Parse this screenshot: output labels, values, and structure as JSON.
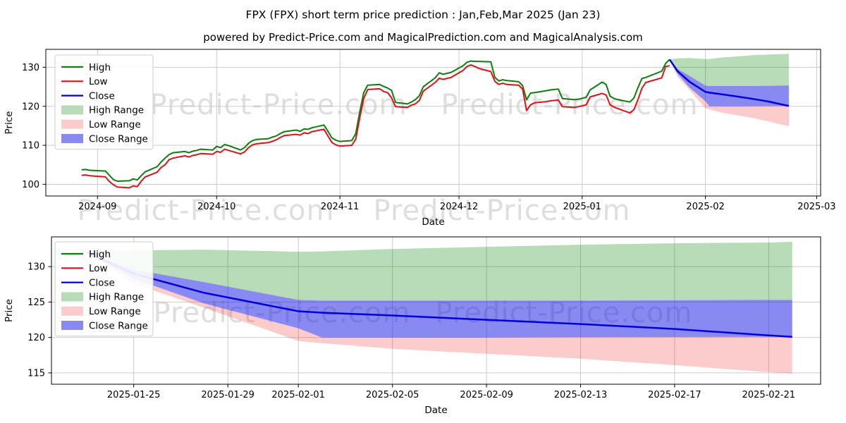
{
  "title": "FPX (FPX) short term price prediction : Jan,Feb,Mar 2025 (Jan 23)",
  "subtitle": "powered by Predict-Price.com and MagicalPrediction.com and MagicalAnalysis.com",
  "watermark": "Predict-Price.com",
  "colors": {
    "high_line": "#0a800a",
    "low_line": "#e01018",
    "close_line": "#0000dd",
    "high_fill": "rgba(0,128,0,0.28)",
    "low_fill": "rgba(240,30,30,0.23)",
    "close_fill": "rgba(20,20,230,0.5)",
    "grid": "#c6c6c6",
    "spine": "#000000"
  },
  "legend": [
    {
      "label": "High",
      "type": "line",
      "color": "#0a800a"
    },
    {
      "label": "Low",
      "type": "line",
      "color": "#e01018"
    },
    {
      "label": "Close",
      "type": "line",
      "color": "#0000dd"
    },
    {
      "label": "High Range",
      "type": "patch",
      "color": "rgba(0,128,0,0.28)"
    },
    {
      "label": "Low Range",
      "type": "patch",
      "color": "rgba(240,30,30,0.23)"
    },
    {
      "label": "Close Range",
      "type": "patch",
      "color": "rgba(20,20,230,0.5)"
    }
  ],
  "chart_data": [
    {
      "name": "top-chart",
      "type": "line",
      "xlabel": "Date",
      "ylabel": "Price",
      "xlim": [
        "2024-08-19",
        "2025-03-02"
      ],
      "ylim": [
        97,
        134.6
      ],
      "y_ticks": [
        100,
        110,
        120,
        130
      ],
      "x_ticks": [
        {
          "date": "2024-09-01",
          "label": "2024-09"
        },
        {
          "date": "2024-10-01",
          "label": "2024-10"
        },
        {
          "date": "2024-11-01",
          "label": "2024-11"
        },
        {
          "date": "2024-12-01",
          "label": "2024-12"
        },
        {
          "date": "2025-01-01",
          "label": "2025-01"
        },
        {
          "date": "2025-02-01",
          "label": "2025-02"
        },
        {
          "date": "2025-03-01",
          "label": "2025-03"
        }
      ],
      "series": [
        {
          "name": "High",
          "color": "#0a800a",
          "width": 2,
          "dates": [
            "2024-08-28",
            "2024-08-29",
            "2024-08-30",
            "2024-09-03",
            "2024-09-04",
            "2024-09-05",
            "2024-09-06",
            "2024-09-09",
            "2024-09-10",
            "2024-09-11",
            "2024-09-12",
            "2024-09-13",
            "2024-09-16",
            "2024-09-17",
            "2024-09-18",
            "2024-09-19",
            "2024-09-20",
            "2024-09-23",
            "2024-09-24",
            "2024-09-25",
            "2024-09-26",
            "2024-09-27",
            "2024-09-30",
            "2024-10-01",
            "2024-10-02",
            "2024-10-03",
            "2024-10-04",
            "2024-10-07",
            "2024-10-08",
            "2024-10-09",
            "2024-10-10",
            "2024-10-11",
            "2024-10-14",
            "2024-10-15",
            "2024-10-16",
            "2024-10-17",
            "2024-10-18",
            "2024-10-21",
            "2024-10-22",
            "2024-10-23",
            "2024-10-24",
            "2024-10-25",
            "2024-10-28",
            "2024-10-29",
            "2024-10-30",
            "2024-10-31",
            "2024-11-01",
            "2024-11-04",
            "2024-11-05",
            "2024-11-06",
            "2024-11-07",
            "2024-11-08",
            "2024-11-11",
            "2024-11-12",
            "2024-11-13",
            "2024-11-14",
            "2024-11-15",
            "2024-11-18",
            "2024-11-19",
            "2024-11-20",
            "2024-11-21",
            "2024-11-22",
            "2024-11-25",
            "2024-11-26",
            "2024-11-27",
            "2024-11-29",
            "2024-12-02",
            "2024-12-03",
            "2024-12-04",
            "2024-12-05",
            "2024-12-06",
            "2024-12-09",
            "2024-12-10",
            "2024-12-11",
            "2024-12-12",
            "2024-12-13",
            "2024-12-16",
            "2024-12-17",
            "2024-12-18",
            "2024-12-19",
            "2024-12-20",
            "2024-12-23",
            "2024-12-24",
            "2024-12-26",
            "2024-12-27",
            "2024-12-30",
            "2024-12-31",
            "2025-01-02",
            "2025-01-03",
            "2025-01-06",
            "2025-01-07",
            "2025-01-08",
            "2025-01-09",
            "2025-01-10",
            "2025-01-13",
            "2025-01-14",
            "2025-01-15",
            "2025-01-16",
            "2025-01-17",
            "2025-01-21",
            "2025-01-22",
            "2025-01-23"
          ],
          "values": [
            103.7,
            103.8,
            103.6,
            103.4,
            102.3,
            101.2,
            100.8,
            100.9,
            101.4,
            101.1,
            102.2,
            103.2,
            104.5,
            105.7,
            106.7,
            107.6,
            108.1,
            108.4,
            108.1,
            108.5,
            108.7,
            109.0,
            108.8,
            109.7,
            109.4,
            110.2,
            109.9,
            108.8,
            109.4,
            110.5,
            111.2,
            111.5,
            111.7,
            112.1,
            112.4,
            113.0,
            113.5,
            113.9,
            113.6,
            114.2,
            114.1,
            114.5,
            115.2,
            113.6,
            111.9,
            111.3,
            111.0,
            111.2,
            113.0,
            118.5,
            123.5,
            125.4,
            125.6,
            125.1,
            124.7,
            124.1,
            121.0,
            120.6,
            121.1,
            121.7,
            122.7,
            125.0,
            127.3,
            128.6,
            128.2,
            128.7,
            130.4,
            131.3,
            131.6,
            131.5,
            131.5,
            131.4,
            127.4,
            126.5,
            126.8,
            126.6,
            126.3,
            125.3,
            121.7,
            123.4,
            123.5,
            124.0,
            124.2,
            124.4,
            122.0,
            121.7,
            121.8,
            122.3,
            124.2,
            126.2,
            125.6,
            122.6,
            122.0,
            121.7,
            121.1,
            122.1,
            124.7,
            127.1,
            127.4,
            129.0,
            131.0,
            132.0
          ]
        },
        {
          "name": "Low",
          "color": "#e01018",
          "width": 2,
          "dates": [
            "2024-08-28",
            "2024-08-29",
            "2024-08-30",
            "2024-09-03",
            "2024-09-04",
            "2024-09-05",
            "2024-09-06",
            "2024-09-09",
            "2024-09-10",
            "2024-09-11",
            "2024-09-12",
            "2024-09-13",
            "2024-09-16",
            "2024-09-17",
            "2024-09-18",
            "2024-09-19",
            "2024-09-20",
            "2024-09-23",
            "2024-09-24",
            "2024-09-25",
            "2024-09-26",
            "2024-09-27",
            "2024-09-30",
            "2024-10-01",
            "2024-10-02",
            "2024-10-03",
            "2024-10-04",
            "2024-10-07",
            "2024-10-08",
            "2024-10-09",
            "2024-10-10",
            "2024-10-11",
            "2024-10-14",
            "2024-10-15",
            "2024-10-16",
            "2024-10-17",
            "2024-10-18",
            "2024-10-21",
            "2024-10-22",
            "2024-10-23",
            "2024-10-24",
            "2024-10-25",
            "2024-10-28",
            "2024-10-29",
            "2024-10-30",
            "2024-10-31",
            "2024-11-01",
            "2024-11-04",
            "2024-11-05",
            "2024-11-06",
            "2024-11-07",
            "2024-11-08",
            "2024-11-11",
            "2024-11-12",
            "2024-11-13",
            "2024-11-14",
            "2024-11-15",
            "2024-11-18",
            "2024-11-19",
            "2024-11-20",
            "2024-11-21",
            "2024-11-22",
            "2024-11-25",
            "2024-11-26",
            "2024-11-27",
            "2024-11-29",
            "2024-12-02",
            "2024-12-03",
            "2024-12-04",
            "2024-12-05",
            "2024-12-06",
            "2024-12-09",
            "2024-12-10",
            "2024-12-11",
            "2024-12-12",
            "2024-12-13",
            "2024-12-16",
            "2024-12-17",
            "2024-12-18",
            "2024-12-19",
            "2024-12-20",
            "2024-12-23",
            "2024-12-24",
            "2024-12-26",
            "2024-12-27",
            "2024-12-30",
            "2024-12-31",
            "2025-01-02",
            "2025-01-03",
            "2025-01-06",
            "2025-01-07",
            "2025-01-08",
            "2025-01-09",
            "2025-01-10",
            "2025-01-13",
            "2025-01-14",
            "2025-01-15",
            "2025-01-16",
            "2025-01-17",
            "2025-01-21",
            "2025-01-22",
            "2025-01-23"
          ],
          "values": [
            102.3,
            102.4,
            102.2,
            101.9,
            100.7,
            99.9,
            99.3,
            99.1,
            99.6,
            99.4,
            100.8,
            101.9,
            103.1,
            104.3,
            105.0,
            106.3,
            106.7,
            107.3,
            107.0,
            107.4,
            107.6,
            107.9,
            107.7,
            108.4,
            108.2,
            109.0,
            108.7,
            107.8,
            108.3,
            109.4,
            110.1,
            110.4,
            110.7,
            111.0,
            111.4,
            112.0,
            112.5,
            112.8,
            112.6,
            113.2,
            113.0,
            113.5,
            114.1,
            112.4,
            110.7,
            110.1,
            109.8,
            110.0,
            111.6,
            117.0,
            122.0,
            124.3,
            124.5,
            123.8,
            123.5,
            122.2,
            119.9,
            119.7,
            120.3,
            120.6,
            121.5,
            123.9,
            126.1,
            127.2,
            126.9,
            127.4,
            129.2,
            130.2,
            130.6,
            130.2,
            129.7,
            128.9,
            126.4,
            125.6,
            125.9,
            125.6,
            125.4,
            124.4,
            118.9,
            120.4,
            120.9,
            121.2,
            121.4,
            121.6,
            119.9,
            119.7,
            119.9,
            120.4,
            122.4,
            123.3,
            122.9,
            120.4,
            119.8,
            119.4,
            118.3,
            119.1,
            121.6,
            124.6,
            126.1,
            127.3,
            130.2,
            130.4
          ]
        },
        {
          "name": "Close",
          "color": "#0000dd",
          "width": 2.5,
          "dates": [
            "2025-01-23",
            "2025-01-25",
            "2025-01-28",
            "2025-02-01",
            "2025-02-02",
            "2025-02-05",
            "2025-02-09",
            "2025-02-13",
            "2025-02-17",
            "2025-02-21",
            "2025-02-22"
          ],
          "values": [
            132.0,
            129.0,
            126.3,
            123.7,
            123.5,
            123.1,
            122.5,
            121.9,
            121.2,
            120.3,
            120.1
          ]
        }
      ],
      "bands": [
        {
          "name": "High Range",
          "fill": "rgba(0,128,0,0.28)",
          "dates": [
            "2025-01-23",
            "2025-01-25",
            "2025-01-28",
            "2025-02-01",
            "2025-02-02",
            "2025-02-05",
            "2025-02-09",
            "2025-02-13",
            "2025-02-17",
            "2025-02-21",
            "2025-02-22"
          ],
          "upper": [
            132.0,
            132.3,
            132.4,
            132.1,
            132.15,
            132.5,
            132.8,
            133.1,
            133.3,
            133.4,
            133.5
          ],
          "lower": [
            132.0,
            129.6,
            127.8,
            125.3,
            125.2,
            125.2,
            125.2,
            125.2,
            125.25,
            125.3,
            125.3
          ]
        },
        {
          "name": "Low Range",
          "fill": "rgba(240,30,30,0.23)",
          "dates": [
            "2025-01-23",
            "2025-01-25",
            "2025-01-28",
            "2025-02-01",
            "2025-02-02",
            "2025-02-05",
            "2025-02-09",
            "2025-02-13",
            "2025-02-17",
            "2025-02-21",
            "2025-02-22"
          ],
          "upper": [
            132.0,
            128.3,
            124.8,
            121.3,
            120.0,
            120.0,
            120.0,
            120.05,
            120.07,
            120.1,
            120.1
          ],
          "lower": [
            132.0,
            127.6,
            124.2,
            119.5,
            119.2,
            118.4,
            117.7,
            117.0,
            116.1,
            115.1,
            114.9
          ]
        },
        {
          "name": "Close Range",
          "fill": "rgba(20,20,230,0.5)",
          "dates": [
            "2025-01-23",
            "2025-01-25",
            "2025-01-28",
            "2025-02-01",
            "2025-02-02",
            "2025-02-05",
            "2025-02-09",
            "2025-02-13",
            "2025-02-17",
            "2025-02-21",
            "2025-02-22"
          ],
          "upper": [
            132.0,
            129.6,
            127.8,
            125.3,
            125.2,
            125.2,
            125.2,
            125.2,
            125.25,
            125.3,
            125.3
          ],
          "lower": [
            132.0,
            128.3,
            124.8,
            121.3,
            120.0,
            120.0,
            120.0,
            120.05,
            120.07,
            120.1,
            120.1
          ]
        }
      ]
    },
    {
      "name": "bottom-chart",
      "type": "line",
      "xlabel": "Date",
      "ylabel": "Price",
      "xlim": [
        "2025-01-21T12:00:00Z",
        "2025-02-23T05:00:00Z"
      ],
      "ylim": [
        113.4,
        134.2
      ],
      "y_ticks": [
        115,
        120,
        125,
        130
      ],
      "x_ticks": [
        {
          "date": "2025-01-25",
          "label": "2025-01-25"
        },
        {
          "date": "2025-01-29",
          "label": "2025-01-29"
        },
        {
          "date": "2025-02-01",
          "label": "2025-02-01"
        },
        {
          "date": "2025-02-05",
          "label": "2025-02-05"
        },
        {
          "date": "2025-02-09",
          "label": "2025-02-09"
        },
        {
          "date": "2025-02-13",
          "label": "2025-02-13"
        },
        {
          "date": "2025-02-17",
          "label": "2025-02-17"
        },
        {
          "date": "2025-02-21",
          "label": "2025-02-21"
        }
      ],
      "series": [
        {
          "name": "Close",
          "color": "#0000dd",
          "width": 2.5,
          "dates": [
            "2025-01-23",
            "2025-01-25",
            "2025-01-28",
            "2025-02-01",
            "2025-02-02",
            "2025-02-05",
            "2025-02-09",
            "2025-02-13",
            "2025-02-17",
            "2025-02-21",
            "2025-02-22"
          ],
          "values": [
            132.0,
            129.0,
            126.3,
            123.7,
            123.5,
            123.1,
            122.5,
            121.9,
            121.2,
            120.3,
            120.1
          ]
        }
      ],
      "bands": [
        {
          "name": "High Range",
          "fill": "rgba(0,128,0,0.28)",
          "dates": [
            "2025-01-23",
            "2025-01-25",
            "2025-01-28",
            "2025-02-01",
            "2025-02-02",
            "2025-02-05",
            "2025-02-09",
            "2025-02-13",
            "2025-02-17",
            "2025-02-21",
            "2025-02-22"
          ],
          "upper": [
            132.0,
            132.3,
            132.4,
            132.1,
            132.15,
            132.5,
            132.8,
            133.1,
            133.3,
            133.4,
            133.5
          ],
          "lower": [
            132.0,
            129.6,
            127.8,
            125.3,
            125.2,
            125.2,
            125.2,
            125.2,
            125.25,
            125.3,
            125.3
          ]
        },
        {
          "name": "Low Range",
          "fill": "rgba(240,30,30,0.23)",
          "dates": [
            "2025-01-23",
            "2025-01-25",
            "2025-01-28",
            "2025-02-01",
            "2025-02-02",
            "2025-02-05",
            "2025-02-09",
            "2025-02-13",
            "2025-02-17",
            "2025-02-21",
            "2025-02-22"
          ],
          "upper": [
            132.0,
            128.3,
            124.8,
            121.3,
            120.0,
            120.0,
            120.0,
            120.05,
            120.07,
            120.1,
            120.1
          ],
          "lower": [
            132.0,
            127.6,
            124.2,
            119.5,
            119.2,
            118.4,
            117.7,
            117.0,
            116.1,
            115.1,
            114.9
          ]
        },
        {
          "name": "Close Range",
          "fill": "rgba(20,20,230,0.5)",
          "dates": [
            "2025-01-23",
            "2025-01-25",
            "2025-01-28",
            "2025-02-01",
            "2025-02-02",
            "2025-02-05",
            "2025-02-09",
            "2025-02-13",
            "2025-02-17",
            "2025-02-21",
            "2025-02-22"
          ],
          "upper": [
            132.0,
            129.6,
            127.8,
            125.3,
            125.2,
            125.2,
            125.2,
            125.2,
            125.25,
            125.3,
            125.3
          ],
          "lower": [
            132.0,
            128.3,
            124.8,
            121.3,
            120.0,
            120.0,
            120.0,
            120.05,
            120.07,
            120.1,
            120.1
          ]
        }
      ]
    }
  ]
}
